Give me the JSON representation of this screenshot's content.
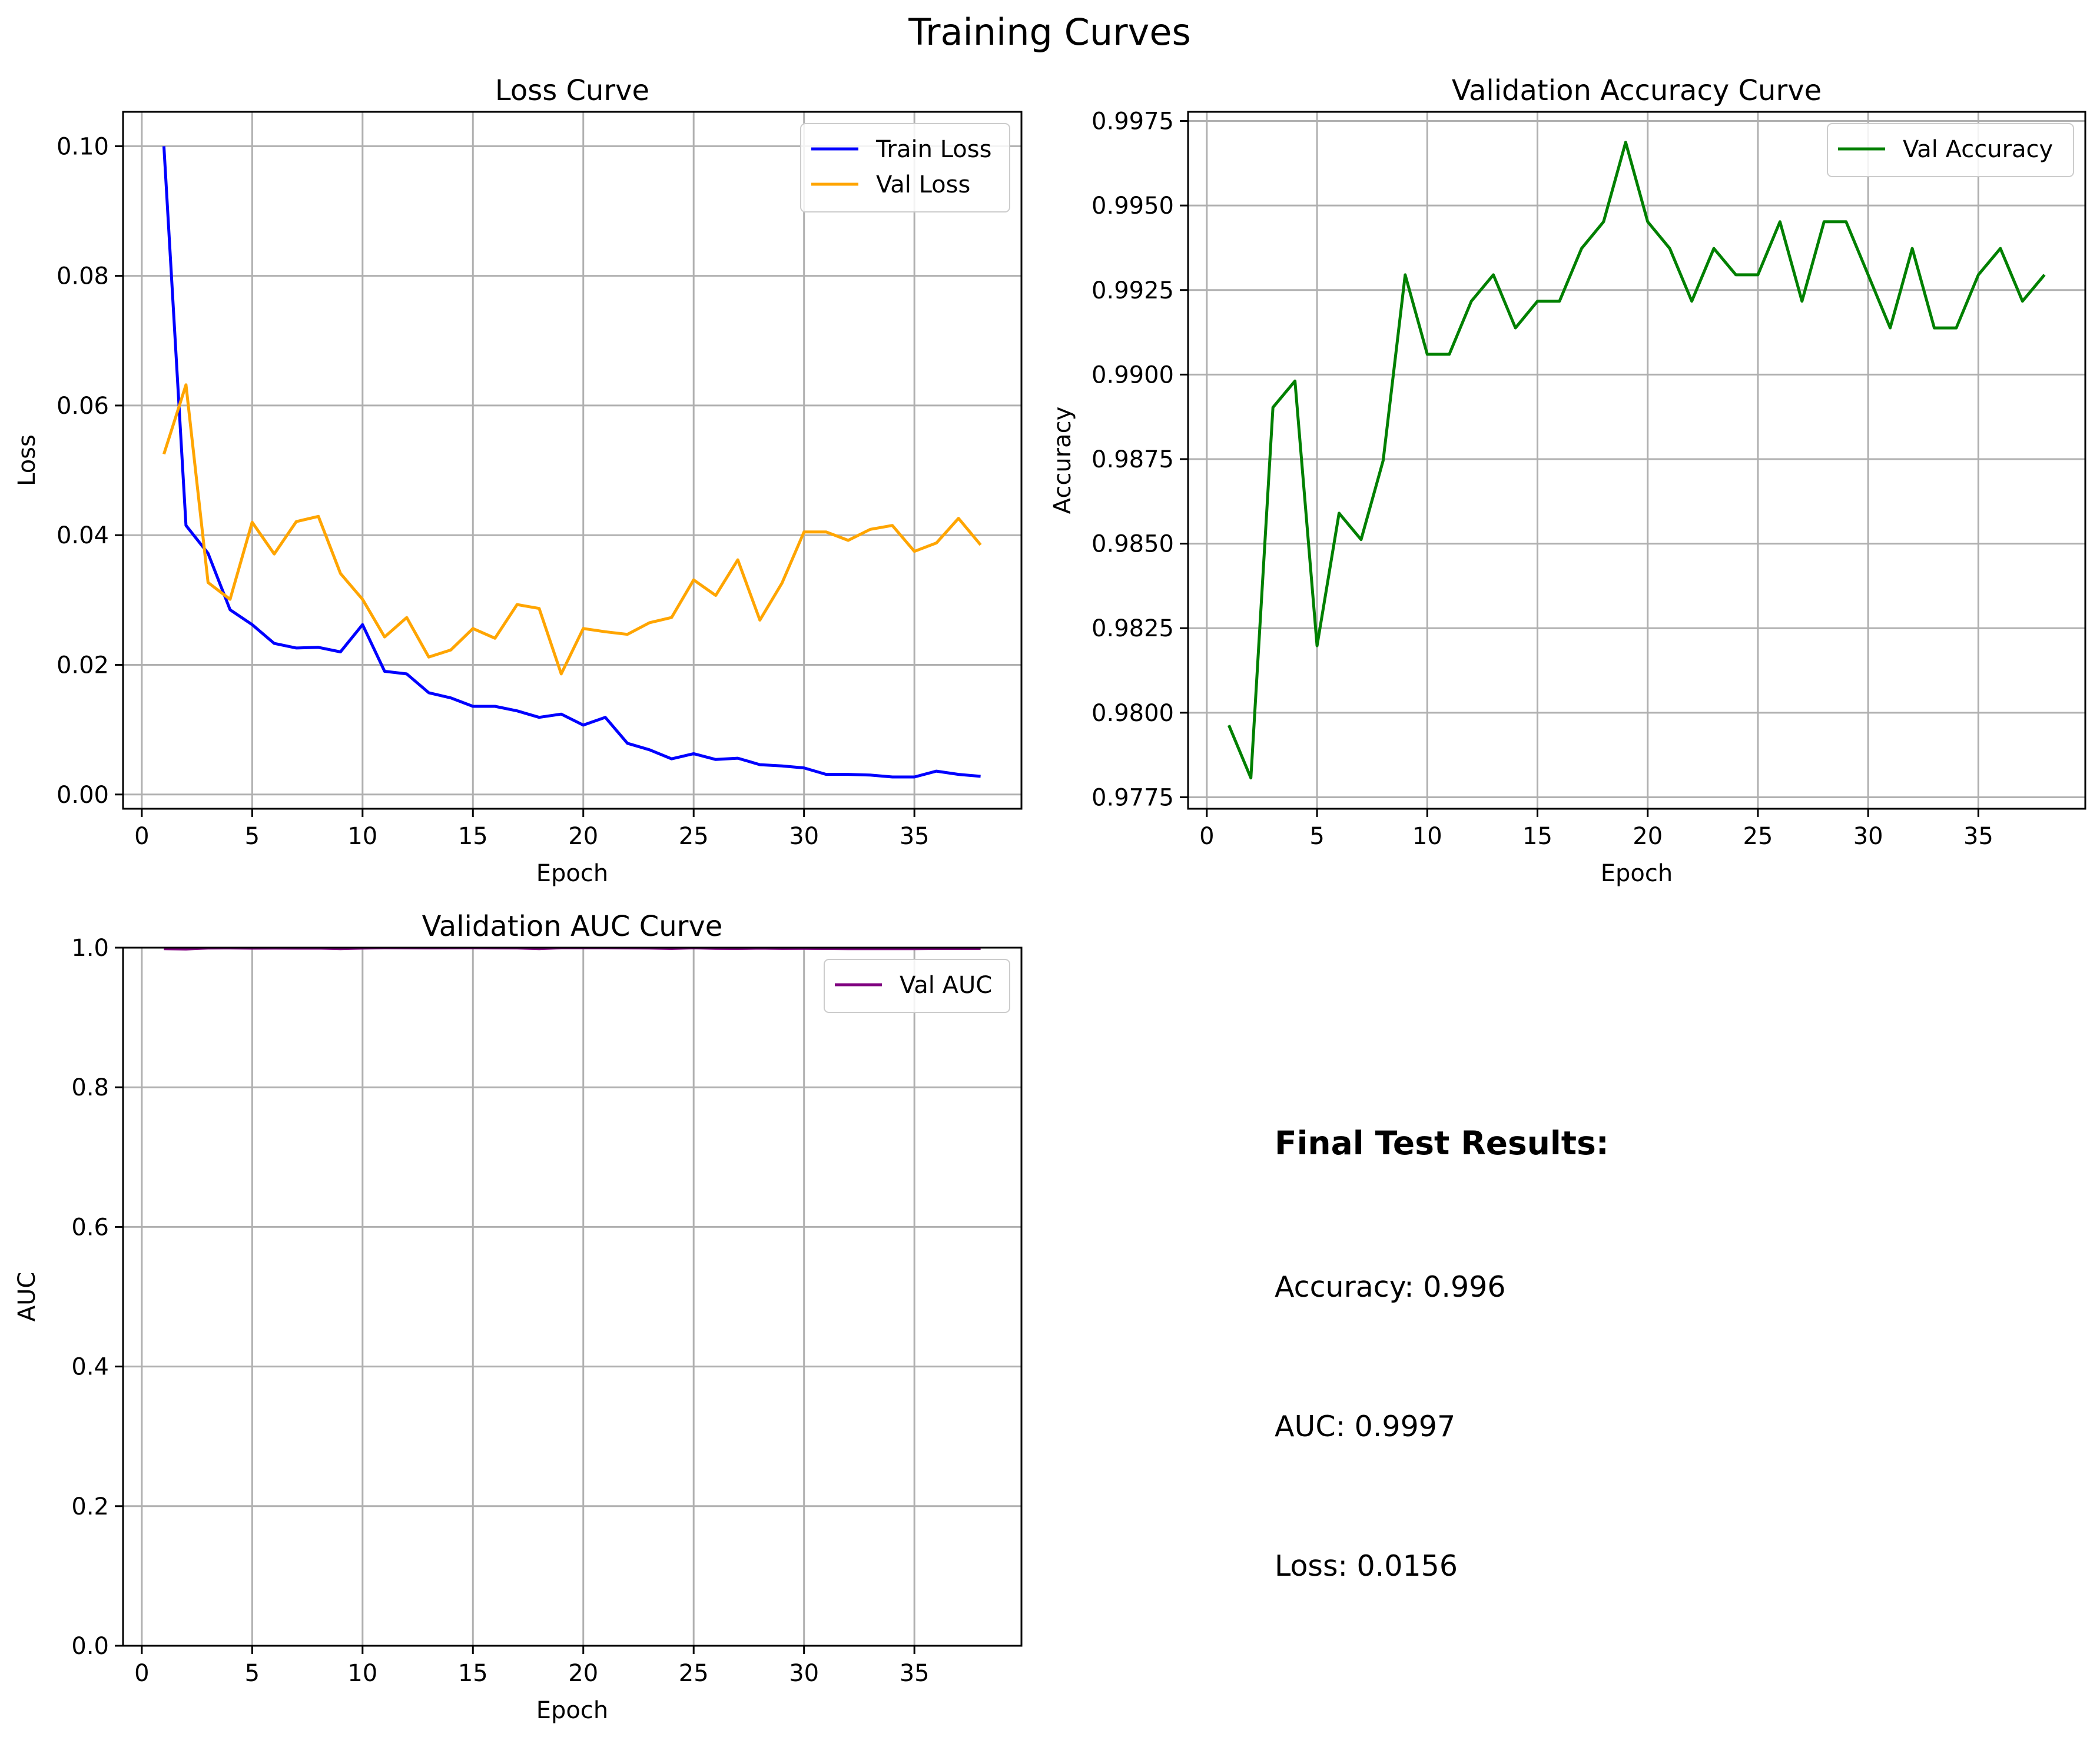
{
  "figure_title": "Training Curves",
  "colors": {
    "train_loss": "#0000ff",
    "val_loss": "#ffa500",
    "val_accuracy": "#008000",
    "val_auc": "#800080",
    "grid": "#b0b0b0"
  },
  "results": {
    "heading": "Final Test Results:",
    "accuracy": "Accuracy: 0.996",
    "auc": "AUC: 0.9997",
    "loss": "Loss: 0.0156"
  },
  "chart_data": [
    {
      "type": "line",
      "title": "Loss Curve",
      "xlabel": "Epoch",
      "ylabel": "Loss",
      "xlim": [
        -0.85,
        39.85
      ],
      "ylim": [
        -0.0022,
        0.1053
      ],
      "xticks": [
        "0",
        "5",
        "10",
        "15",
        "20",
        "25",
        "30",
        "35"
      ],
      "yticks": [
        "0.00",
        "0.02",
        "0.04",
        "0.06",
        "0.08",
        "0.10"
      ],
      "grid": true,
      "legend": "upper right",
      "x": [
        1,
        2,
        3,
        4,
        5,
        6,
        7,
        8,
        9,
        10,
        11,
        12,
        13,
        14,
        15,
        16,
        17,
        18,
        19,
        20,
        21,
        22,
        23,
        24,
        25,
        26,
        27,
        28,
        29,
        30,
        31,
        32,
        33,
        34,
        35,
        36,
        37,
        38
      ],
      "series": [
        {
          "name": "Train Loss",
          "color": "#0000ff",
          "values": [
            0.1,
            0.0415,
            0.0372,
            0.0285,
            0.0262,
            0.0233,
            0.0226,
            0.0227,
            0.022,
            0.0262,
            0.019,
            0.0186,
            0.0157,
            0.0149,
            0.0136,
            0.0136,
            0.0129,
            0.0119,
            0.0124,
            0.0107,
            0.0119,
            0.0079,
            0.0069,
            0.0055,
            0.0063,
            0.0054,
            0.0056,
            0.0046,
            0.0044,
            0.0041,
            0.0031,
            0.0031,
            0.003,
            0.0027,
            0.0027,
            0.0036,
            0.0031,
            0.0028
          ]
        },
        {
          "name": "Val Loss",
          "color": "#ffa500",
          "values": [
            0.0525,
            0.0632,
            0.0327,
            0.0301,
            0.042,
            0.0371,
            0.0421,
            0.0429,
            0.0341,
            0.0301,
            0.0243,
            0.0273,
            0.0212,
            0.0223,
            0.0256,
            0.0241,
            0.0293,
            0.0287,
            0.0186,
            0.0256,
            0.0251,
            0.0247,
            0.0265,
            0.0273,
            0.0331,
            0.0307,
            0.0362,
            0.0269,
            0.0326,
            0.0405,
            0.0405,
            0.0392,
            0.0409,
            0.0415,
            0.0375,
            0.0388,
            0.0426,
            0.0385
          ]
        }
      ]
    },
    {
      "type": "line",
      "title": "Validation Accuracy Curve",
      "xlabel": "Epoch",
      "ylabel": "Accuracy",
      "xlim": [
        -0.85,
        39.85
      ],
      "ylim": [
        0.97716,
        0.99777
      ],
      "xticks": [
        "0",
        "5",
        "10",
        "15",
        "20",
        "25",
        "30",
        "35"
      ],
      "yticks": [
        "0.9775",
        "0.9800",
        "0.9825",
        "0.9850",
        "0.9875",
        "0.9900",
        "0.9925",
        "0.9950",
        "0.9975"
      ],
      "grid": true,
      "legend": "upper right",
      "x": [
        1,
        2,
        3,
        4,
        5,
        6,
        7,
        8,
        9,
        10,
        11,
        12,
        13,
        14,
        15,
        16,
        17,
        18,
        19,
        20,
        21,
        22,
        23,
        24,
        25,
        26,
        27,
        28,
        29,
        30,
        31,
        32,
        33,
        34,
        35,
        36,
        37,
        38
      ],
      "series": [
        {
          "name": "Val Accuracy",
          "color": "#008000",
          "values": [
            0.97963,
            0.97807,
            0.98903,
            0.98981,
            0.98198,
            0.9859,
            0.98512,
            0.98746,
            0.99295,
            0.9906,
            0.9906,
            0.99217,
            0.99295,
            0.99138,
            0.99217,
            0.99217,
            0.99373,
            0.99452,
            0.99687,
            0.99452,
            0.99373,
            0.99217,
            0.99373,
            0.99295,
            0.99295,
            0.99452,
            0.99217,
            0.99452,
            0.99452,
            0.99295,
            0.99138,
            0.99373,
            0.99138,
            0.99138,
            0.99295,
            0.99373,
            0.99217,
            0.99295
          ]
        }
      ]
    },
    {
      "type": "line",
      "title": "Validation AUC Curve",
      "xlabel": "Epoch",
      "ylabel": "AUC",
      "xlim": [
        -0.85,
        39.85
      ],
      "ylim": [
        0,
        1
      ],
      "xticks": [
        "0",
        "5",
        "10",
        "15",
        "20",
        "25",
        "30",
        "35"
      ],
      "yticks": [
        "0.0",
        "0.2",
        "0.4",
        "0.6",
        "0.8",
        "1.0"
      ],
      "grid": true,
      "legend": "upper right",
      "x": [
        1,
        2,
        3,
        4,
        5,
        6,
        7,
        8,
        9,
        10,
        11,
        12,
        13,
        14,
        15,
        16,
        17,
        18,
        19,
        20,
        21,
        22,
        23,
        24,
        25,
        26,
        27,
        28,
        29,
        30,
        31,
        32,
        33,
        34,
        35,
        36,
        37,
        38
      ],
      "series": [
        {
          "name": "Val AUC",
          "color": "#800080",
          "values": [
            0.9985,
            0.9981,
            0.9995,
            0.9996,
            0.9992,
            0.9993,
            0.9992,
            0.9993,
            0.9986,
            0.9994,
            0.9999,
            0.9998,
            0.9997,
            0.9998,
            0.9999,
            0.9997,
            0.9996,
            0.9985,
            0.9999,
            0.9999,
            0.9999,
            0.9997,
            0.9995,
            0.9987,
            0.9998,
            0.999,
            0.9987,
            0.9992,
            0.9988,
            0.999,
            0.9987,
            0.9986,
            0.9985,
            0.9986,
            0.9986,
            0.9987,
            0.9987,
            0.9987
          ]
        }
      ]
    }
  ]
}
